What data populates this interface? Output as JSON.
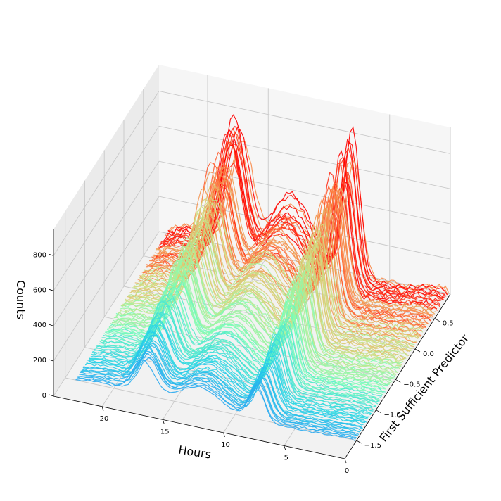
{
  "chart_data": {
    "type": "line",
    "projection": "3d",
    "xlabel": "Hours",
    "ylabel": "First Sufficient Predictor",
    "zlabel": "Counts",
    "xlim": [
      0,
      24
    ],
    "ylim": [
      -1.8,
      0.9
    ],
    "zlim": [
      0,
      950
    ],
    "x_ticks": [
      "0",
      "5",
      "10",
      "15",
      "20"
    ],
    "y_ticks": [
      "−1.5",
      "−1.0",
      "−0.5",
      "0.0",
      "0.5"
    ],
    "z_ticks": [
      "0",
      "200",
      "400",
      "600",
      "800"
    ],
    "grid": true,
    "colormap": [
      "#8000ff",
      "#2c7ef8",
      "#28d4e6",
      "#80ffb4",
      "#d4dc7f",
      "#ff7c41",
      "#ff0000"
    ],
    "curve_count": 120,
    "predictor_range": [
      -1.55,
      0.85
    ],
    "description_of_profiles": {
      "low_predictor": {
        "morning_peak_hour": 8,
        "evening_peak_hour": 17,
        "max_counts": 250
      },
      "high_predictor": {
        "morning_peak_hour": 8,
        "evening_peak_hour": 17.5,
        "max_counts": 880
      }
    }
  }
}
